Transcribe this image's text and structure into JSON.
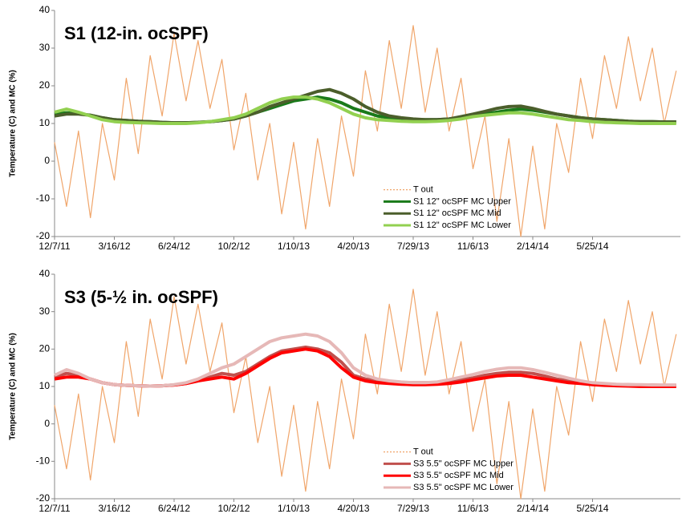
{
  "chart_data": [
    {
      "type": "line",
      "title": "S1 (12-in. ocSPF)",
      "title_color": "#1e7b1e",
      "ylabel": "Temperature (C) and MC (%)",
      "x": [
        "12/7/11",
        "12/27/11",
        "1/16/12",
        "2/5/12",
        "2/25/12",
        "3/16/12",
        "4/5/12",
        "4/25/12",
        "5/15/12",
        "6/4/12",
        "6/24/12",
        "7/14/12",
        "8/3/12",
        "8/23/12",
        "9/12/12",
        "10/2/12",
        "10/22/12",
        "11/11/12",
        "12/1/12",
        "12/21/12",
        "1/10/13",
        "1/30/13",
        "2/19/13",
        "3/11/13",
        "3/31/13",
        "4/20/13",
        "5/10/13",
        "5/30/13",
        "6/19/13",
        "7/9/13",
        "7/29/13",
        "8/18/13",
        "9/7/13",
        "9/27/13",
        "10/17/13",
        "11/6/13",
        "11/26/13",
        "12/16/13",
        "1/5/14",
        "1/25/14",
        "2/14/14",
        "3/6/14",
        "3/26/14",
        "4/15/14",
        "5/5/14",
        "5/25/14",
        "6/14/14",
        "7/4/14",
        "7/24/14",
        "8/13/14",
        "9/2/14",
        "9/22/14",
        "10/12/14"
      ],
      "xlim": [
        "12/7/11",
        "10/19/14"
      ],
      "xticks": [
        "12/7/11",
        "3/16/12",
        "6/24/12",
        "10/2/12",
        "1/10/13",
        "4/20/13",
        "7/29/13",
        "11/6/13",
        "2/14/14",
        "5/25/14"
      ],
      "ylim": [
        -20,
        40
      ],
      "yticks": [
        -20,
        -10,
        0,
        10,
        20,
        30,
        40
      ],
      "legend": "lower center",
      "series": [
        {
          "name": "T out",
          "color": "#f0a56a",
          "line_width": 1.2,
          "values": [
            5,
            -12,
            8,
            -15,
            10,
            -5,
            22,
            2,
            28,
            12,
            34,
            16,
            32,
            14,
            27,
            3,
            18,
            -5,
            10,
            -14,
            5,
            -18,
            6,
            -12,
            12,
            -4,
            24,
            8,
            32,
            14,
            36,
            13,
            30,
            8,
            22,
            -2,
            12,
            -16,
            6,
            -20,
            4,
            -18,
            10,
            -3,
            22,
            6,
            28,
            14,
            33,
            16,
            30,
            10,
            24
          ]
        },
        {
          "name": "S1 12\" ocSPF MC Upper",
          "color": "#1a7a1a",
          "line_width": 4,
          "values": [
            12.5,
            12.8,
            12.6,
            12.2,
            11.5,
            11,
            10.8,
            10.6,
            10.5,
            10.3,
            10.2,
            10.2,
            10.3,
            10.5,
            10.8,
            11.2,
            12,
            13,
            14,
            15,
            16,
            16.5,
            17,
            16.5,
            15.5,
            14,
            13,
            12,
            11.5,
            11.2,
            11,
            11,
            11,
            11.2,
            11.5,
            12,
            12.5,
            13,
            13.5,
            13.8,
            13.5,
            13,
            12.5,
            12,
            11.5,
            11.2,
            11,
            10.8,
            10.6,
            10.5,
            10.5,
            10.4,
            10.4
          ]
        },
        {
          "name": "S1 12\" ocSPF MC Mid",
          "color": "#4b5e2b",
          "line_width": 4,
          "values": [
            12,
            12.5,
            12.5,
            12.2,
            11.5,
            11,
            10.8,
            10.6,
            10.5,
            10.3,
            10.2,
            10.2,
            10.3,
            10.5,
            10.8,
            11.2,
            12,
            13,
            14.5,
            15.5,
            16.5,
            17.5,
            18.5,
            19,
            18,
            16.5,
            14.5,
            13,
            12,
            11.5,
            11.2,
            11,
            11,
            11.2,
            11.8,
            12.5,
            13.2,
            14,
            14.5,
            14.6,
            14,
            13.2,
            12.5,
            12,
            11.5,
            11.2,
            11,
            10.8,
            10.6,
            10.5,
            10.5,
            10.4,
            10.4
          ]
        },
        {
          "name": "S1 12\" ocSPF MC Lower",
          "color": "#92d050",
          "line_width": 4,
          "values": [
            13,
            13.8,
            13,
            12,
            11,
            10.5,
            10.3,
            10.2,
            10.1,
            10,
            10,
            10,
            10.2,
            10.5,
            11,
            11.5,
            12.5,
            14,
            15.5,
            16.5,
            17,
            17,
            16.5,
            15.5,
            14,
            12.5,
            11.5,
            11,
            10.8,
            10.6,
            10.5,
            10.5,
            10.6,
            10.8,
            11.2,
            11.8,
            12.2,
            12.5,
            12.8,
            12.8,
            12.5,
            12,
            11.5,
            11,
            10.8,
            10.5,
            10.3,
            10.2,
            10.1,
            10,
            10,
            10,
            10
          ]
        }
      ]
    },
    {
      "type": "line",
      "title": "S3 (5-½ in. ocSPF)",
      "title_color": "#ff0000",
      "ylabel": "Temperature (C) and MC (%)",
      "x": [
        "12/7/11",
        "12/27/11",
        "1/16/12",
        "2/5/12",
        "2/25/12",
        "3/16/12",
        "4/5/12",
        "4/25/12",
        "5/15/12",
        "6/4/12",
        "6/24/12",
        "7/14/12",
        "8/3/12",
        "8/23/12",
        "9/12/12",
        "10/2/12",
        "10/22/12",
        "11/11/12",
        "12/1/12",
        "12/21/12",
        "1/10/13",
        "1/30/13",
        "2/19/13",
        "3/11/13",
        "3/31/13",
        "4/20/13",
        "5/10/13",
        "5/30/13",
        "6/19/13",
        "7/9/13",
        "7/29/13",
        "8/18/13",
        "9/7/13",
        "9/27/13",
        "10/17/13",
        "11/6/13",
        "11/26/13",
        "12/16/13",
        "1/5/14",
        "1/25/14",
        "2/14/14",
        "3/6/14",
        "3/26/14",
        "4/15/14",
        "5/5/14",
        "5/25/14",
        "6/14/14",
        "7/4/14",
        "7/24/14",
        "8/13/14",
        "9/2/14",
        "9/22/14",
        "10/12/14"
      ],
      "xlim": [
        "12/7/11",
        "10/19/14"
      ],
      "xticks": [
        "12/7/11",
        "3/16/12",
        "6/24/12",
        "10/2/12",
        "1/10/13",
        "4/20/13",
        "7/29/13",
        "11/6/13",
        "2/14/14",
        "5/25/14"
      ],
      "ylim": [
        -20,
        40
      ],
      "yticks": [
        -20,
        -10,
        0,
        10,
        20,
        30,
        40
      ],
      "legend": "lower center",
      "series": [
        {
          "name": "T out",
          "color": "#f0a56a",
          "line_width": 1.2,
          "values": [
            5,
            -12,
            8,
            -15,
            10,
            -5,
            22,
            2,
            28,
            12,
            34,
            16,
            32,
            14,
            27,
            3,
            18,
            -5,
            10,
            -14,
            5,
            -18,
            6,
            -12,
            12,
            -4,
            24,
            8,
            32,
            14,
            36,
            13,
            30,
            8,
            22,
            -2,
            12,
            -16,
            6,
            -20,
            4,
            -18,
            10,
            -3,
            22,
            6,
            28,
            14,
            33,
            16,
            30,
            10,
            24
          ]
        },
        {
          "name": "S3 5.5\" ocSPF MC Upper",
          "color": "#c0504d",
          "line_width": 4,
          "values": [
            12.5,
            13.5,
            13,
            12,
            11,
            10.5,
            10.3,
            10.2,
            10.1,
            10.2,
            10.4,
            10.8,
            11.5,
            12.5,
            13.5,
            13,
            14,
            16,
            18,
            19.5,
            20,
            20.5,
            20,
            19,
            16.5,
            13,
            12,
            11.5,
            11.2,
            11,
            11,
            11,
            11,
            11.2,
            11.8,
            12.3,
            13,
            13.5,
            13.8,
            13.8,
            13.5,
            12.8,
            12,
            11.5,
            11,
            10.8,
            10.6,
            10.5,
            10.5,
            10.4,
            10.4,
            10.3,
            10.3
          ]
        },
        {
          "name": "S3 5.5\" ocSPF MC Mid",
          "color": "#ff0000",
          "line_width": 4,
          "values": [
            12,
            12.5,
            12.5,
            12,
            11,
            10.5,
            10.3,
            10.2,
            10.1,
            10.2,
            10.4,
            10.8,
            11.5,
            12,
            12.5,
            12,
            13.5,
            15.5,
            17.5,
            19,
            19.5,
            20,
            19.5,
            18,
            15,
            12.5,
            11.5,
            11,
            10.8,
            10.6,
            10.5,
            10.5,
            10.6,
            10.8,
            11.2,
            11.8,
            12.3,
            12.8,
            13,
            13,
            12.5,
            12,
            11.5,
            11,
            10.8,
            10.5,
            10.3,
            10.2,
            10.1,
            10,
            10,
            10,
            10
          ]
        },
        {
          "name": "S3 5.5\" ocSPF MC Lower",
          "color": "#e6b8b7",
          "line_width": 4,
          "values": [
            13,
            14.5,
            13.5,
            12,
            11,
            10.5,
            10.3,
            10.2,
            10.1,
            10.2,
            10.5,
            11,
            12,
            13.5,
            15,
            16,
            18,
            20,
            22,
            23,
            23.5,
            24,
            23.5,
            22,
            19,
            15,
            13,
            12,
            11.5,
            11.2,
            11,
            11,
            11.2,
            11.8,
            12.5,
            13.2,
            14,
            14.6,
            15,
            15,
            14.5,
            13.8,
            13,
            12.2,
            11.5,
            11,
            10.8,
            10.6,
            10.5,
            10.5,
            10.4,
            10.4,
            10.4
          ]
        }
      ]
    }
  ]
}
